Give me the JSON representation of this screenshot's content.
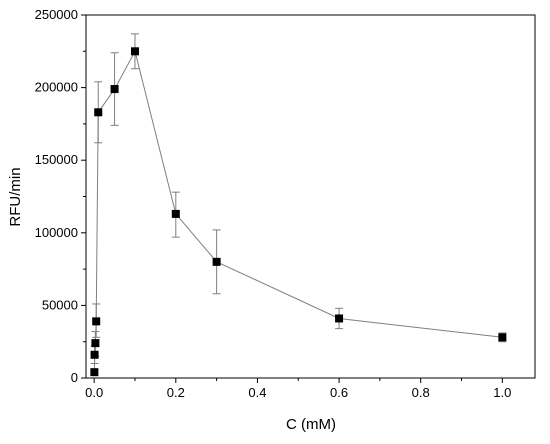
{
  "chart_data": {
    "type": "scatter",
    "title": "",
    "xlabel": "C (mM)",
    "ylabel": "RFU/min",
    "xlim": [
      -0.02,
      1.08
    ],
    "ylim": [
      0,
      250000
    ],
    "x_ticks": [
      0.0,
      0.2,
      0.4,
      0.6,
      0.8,
      1.0
    ],
    "x_tick_labels": [
      "0.0",
      "0.2",
      "0.4",
      "0.6",
      "0.8",
      "1.0"
    ],
    "y_ticks": [
      0,
      50000,
      100000,
      150000,
      200000,
      250000
    ],
    "y_tick_labels": [
      "0",
      "50000",
      "100000",
      "150000",
      "200000",
      "250000"
    ],
    "grid": false,
    "legend": "none",
    "line_color": "#7f7f7f",
    "marker_color": "#000000",
    "marker": "square",
    "series": [
      {
        "x": [
          0.0005,
          0.001,
          0.003,
          0.005,
          0.01,
          0.05,
          0.1,
          0.2,
          0.3,
          0.6,
          1.0
        ],
        "y": [
          4000,
          16000,
          24000,
          39000,
          183000,
          199000,
          225000,
          113000,
          80000,
          41000,
          28000
        ],
        "error_upper": [
          6000,
          22000,
          32000,
          51000,
          204000,
          224000,
          237000,
          128000,
          102000,
          48000,
          31000
        ],
        "error_lower": [
          2000,
          10000,
          15000,
          28000,
          162000,
          174000,
          213000,
          97000,
          58000,
          34000,
          25000
        ]
      }
    ]
  }
}
